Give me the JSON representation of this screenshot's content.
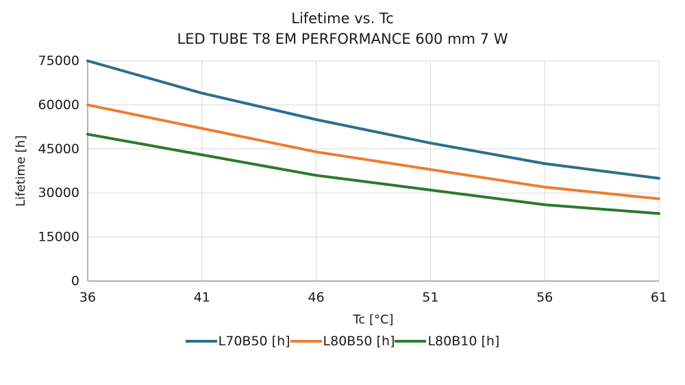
{
  "header": {
    "title": "Lifetime vs. Tc",
    "subtitle": "LED TUBE T8 EM PERFORMANCE 600 mm 7 W"
  },
  "chart_data": {
    "type": "line",
    "title": "Lifetime vs. Tc",
    "subtitle": "LED TUBE T8 EM PERFORMANCE 600 mm 7 W",
    "xlabel": "Tc [°C]",
    "ylabel": "Lifetime [h]",
    "x": [
      36,
      41,
      46,
      51,
      56,
      61
    ],
    "x_ticks": [
      36,
      41,
      46,
      51,
      56,
      61
    ],
    "y_ticks": [
      0,
      15000,
      30000,
      45000,
      60000,
      75000
    ],
    "xlim": [
      36,
      61
    ],
    "ylim": [
      0,
      75000
    ],
    "grid": true,
    "legend_position": "bottom",
    "series": [
      {
        "name": "L70B50 [h]",
        "color": "#2b6e8e",
        "values": [
          75000,
          64000,
          55000,
          47000,
          40000,
          35000
        ]
      },
      {
        "name": "L80B50 [h]",
        "color": "#ed7d31",
        "values": [
          60000,
          52000,
          44000,
          38000,
          32000,
          28000
        ]
      },
      {
        "name": "L80B10 [h]",
        "color": "#2a7a2e",
        "values": [
          50000,
          43000,
          36000,
          31000,
          26000,
          23000
        ]
      }
    ],
    "style": {
      "grid_color": "#d9d9d9",
      "axis_color": "#9a9a9a",
      "tick_label_color": "#1a1a1a",
      "line_width": 4
    }
  }
}
